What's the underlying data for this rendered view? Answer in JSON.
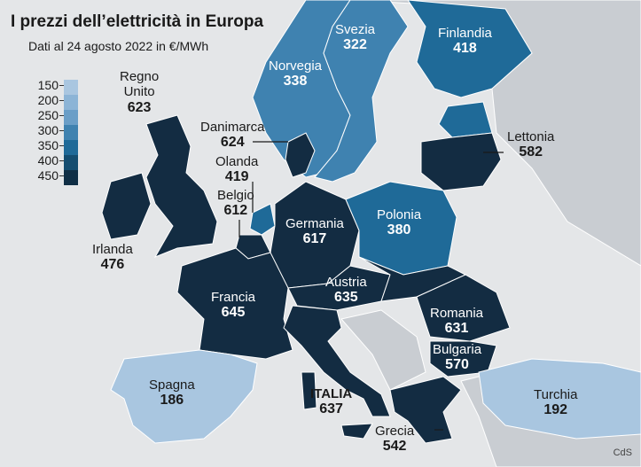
{
  "header": {
    "title": "I prezzi dell’elettricità in Europa",
    "subtitle": "Dati al 24 agosto 2022 in €/MWh"
  },
  "legend": {
    "items": [
      {
        "label": "150",
        "color": "#a9c6e0"
      },
      {
        "label": "200",
        "color": "#8cb4d6"
      },
      {
        "label": "250",
        "color": "#6a9ec7"
      },
      {
        "label": "300",
        "color": "#3f82b0"
      },
      {
        "label": "350",
        "color": "#1f6a98"
      },
      {
        "label": "400",
        "color": "#144d70"
      },
      {
        "label": "450",
        "color": "#0f2e45"
      }
    ]
  },
  "colors": {
    "sea": "#e4e6e8",
    "land_other": "#c9cdd2",
    "dark": "#132c42",
    "border": "#ffffff"
  },
  "countries": [
    {
      "id": "regno-unito",
      "name": "Regno\nUnito",
      "value": "623"
    },
    {
      "id": "irlanda",
      "name": "Irlanda",
      "value": "476"
    },
    {
      "id": "norvegia",
      "name": "Norvegia",
      "value": "338"
    },
    {
      "id": "svezia",
      "name": "Svezia",
      "value": "322"
    },
    {
      "id": "finlandia",
      "name": "Finlandia",
      "value": "418"
    },
    {
      "id": "danimarca",
      "name": "Danimarca",
      "value": "624"
    },
    {
      "id": "olanda",
      "name": "Olanda",
      "value": "419"
    },
    {
      "id": "belgio",
      "name": "Belgio",
      "value": "612"
    },
    {
      "id": "lettonia",
      "name": "Lettonia",
      "value": "582"
    },
    {
      "id": "germania",
      "name": "Germania",
      "value": "617"
    },
    {
      "id": "polonia",
      "name": "Polonia",
      "value": "380"
    },
    {
      "id": "francia",
      "name": "Francia",
      "value": "645"
    },
    {
      "id": "austria",
      "name": "Austria",
      "value": "635"
    },
    {
      "id": "romania",
      "name": "Romania",
      "value": "631"
    },
    {
      "id": "bulgaria",
      "name": "Bulgaria",
      "value": "570"
    },
    {
      "id": "spagna",
      "name": "Spagna",
      "value": "186"
    },
    {
      "id": "italia",
      "name": "ITALIA",
      "value": "637"
    },
    {
      "id": "grecia",
      "name": "Grecia",
      "value": "542"
    },
    {
      "id": "turchia",
      "name": "Turchia",
      "value": "192"
    }
  ],
  "credit": "CdS"
}
